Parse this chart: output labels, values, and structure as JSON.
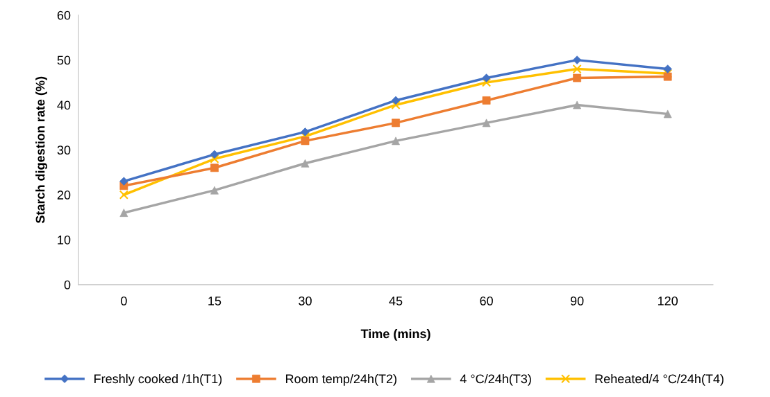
{
  "chart_data": {
    "type": "line",
    "xlabel": "Time (mins)",
    "ylabel": "Starch digestion rate (%)",
    "categories": [
      "0",
      "15",
      "30",
      "45",
      "60",
      "90",
      "120"
    ],
    "ylim": [
      0,
      60
    ],
    "yticks": [
      0,
      10,
      20,
      30,
      40,
      50,
      60
    ],
    "grid": false,
    "legend": "bottom",
    "series": [
      {
        "name": "Freshly cooked /1h(T1)",
        "color": "#4472c4",
        "marker": "diamond",
        "values": [
          23,
          29,
          34,
          41,
          46,
          50,
          48
        ]
      },
      {
        "name": "Room temp/24h(T2)",
        "color": "#ed7d31",
        "marker": "square",
        "values": [
          22,
          26,
          32,
          36,
          41,
          46,
          46.3
        ]
      },
      {
        "name": "4 °C/24h(T3)",
        "color": "#a5a5a5",
        "marker": "triangle",
        "values": [
          16,
          21,
          27,
          32,
          36,
          40,
          38
        ]
      },
      {
        "name": "Reheated/4 °C/24h(T4)",
        "color": "#ffc000",
        "marker": "cross",
        "values": [
          20,
          28,
          33,
          40,
          45,
          48,
          47
        ]
      }
    ]
  }
}
